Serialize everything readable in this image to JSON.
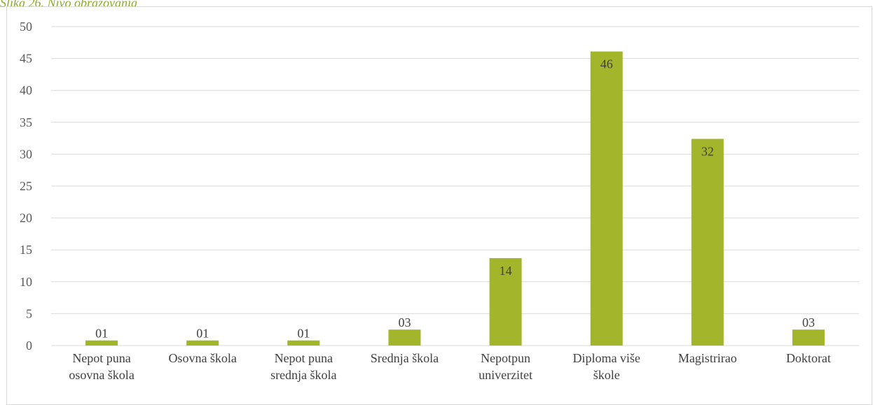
{
  "caption": "Slika 26. Nivo obrazovanja",
  "chart_data": {
    "type": "bar",
    "title": "",
    "xlabel": "",
    "ylabel": "",
    "categories": [
      [
        "Nepot puna",
        "osovna škola"
      ],
      [
        "Osovna škola"
      ],
      [
        "Nepot puna",
        "srednja škola"
      ],
      [
        "Srednja škola"
      ],
      [
        "Nepotpun",
        "univerzitet"
      ],
      [
        "Diploma više",
        "škole"
      ],
      [
        "Magistrirao"
      ],
      [
        "Doktorat"
      ]
    ],
    "values": [
      0.8,
      0.8,
      0.8,
      2.5,
      13.7,
      46.1,
      32.4,
      2.5
    ],
    "data_labels": [
      "01",
      "01",
      "01",
      "03",
      "14",
      "46",
      "32",
      "03"
    ],
    "ylim": [
      0,
      50
    ],
    "yticks": [
      0,
      5,
      10,
      15,
      20,
      25,
      30,
      35,
      40,
      45,
      50
    ],
    "grid": true,
    "legend": "none",
    "bar_color": "#a3b52a",
    "grid_color": "#d9d9d9",
    "label_color": "#404040"
  }
}
